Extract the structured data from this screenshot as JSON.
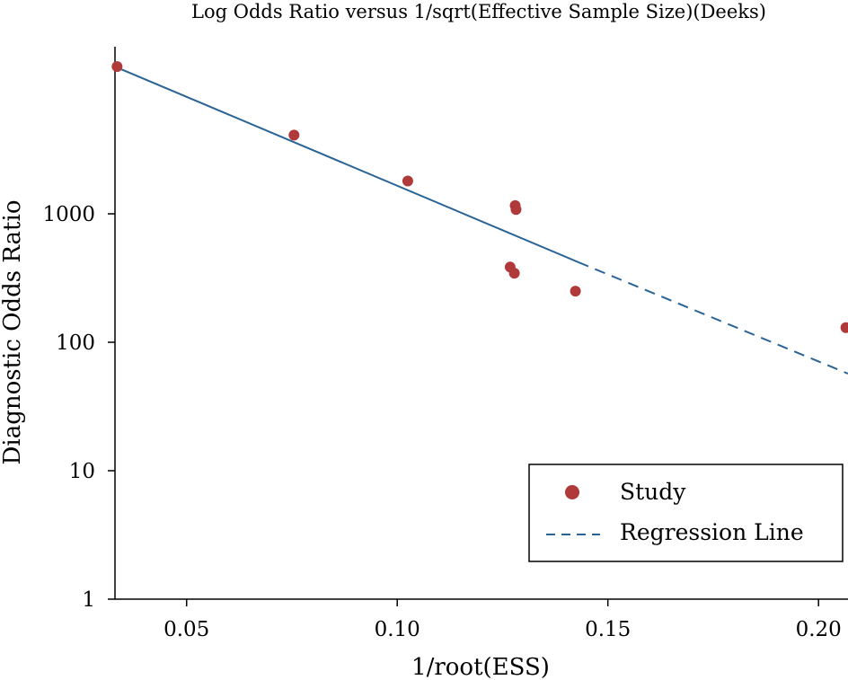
{
  "chart_data": {
    "type": "scatter",
    "title": "Log Odds Ratio versus 1/sqrt(Effective Sample Size)(Deeks)",
    "xlabel": "1/root(ESS)",
    "ylabel": "Diagnostic Odds Ratio",
    "x_scale": "linear",
    "y_scale": "log",
    "xlim": [
      0.033,
      0.207
    ],
    "ylim": [
      1,
      20000
    ],
    "x_ticks": [
      0.05,
      0.1,
      0.15,
      0.2
    ],
    "x_tick_labels": [
      "0.05",
      "0.10",
      "0.15",
      "0.20"
    ],
    "y_ticks": [
      1,
      10,
      100,
      1000
    ],
    "y_tick_labels": [
      "1",
      "10",
      "100",
      "1000"
    ],
    "grid": false,
    "legend_position": "bottom-right",
    "colors": {
      "study": "#B03A3A",
      "regression": "#2A6496"
    },
    "series": [
      {
        "name": "Study",
        "kind": "scatter",
        "points": [
          {
            "x": 0.0335,
            "y": 14000
          },
          {
            "x": 0.0755,
            "y": 4100
          },
          {
            "x": 0.1025,
            "y": 1800
          },
          {
            "x": 0.128,
            "y": 1160
          },
          {
            "x": 0.1282,
            "y": 1080
          },
          {
            "x": 0.1268,
            "y": 385
          },
          {
            "x": 0.1278,
            "y": 345
          },
          {
            "x": 0.1423,
            "y": 250
          },
          {
            "x": 0.2065,
            "y": 130
          }
        ]
      },
      {
        "name": "Regression Line",
        "kind": "line",
        "points": [
          {
            "x": 0.033,
            "y": 14000
          },
          {
            "x": 0.143,
            "y": 420
          },
          {
            "x": 0.207,
            "y": 57
          }
        ],
        "dash_from_x": 0.143
      }
    ]
  }
}
